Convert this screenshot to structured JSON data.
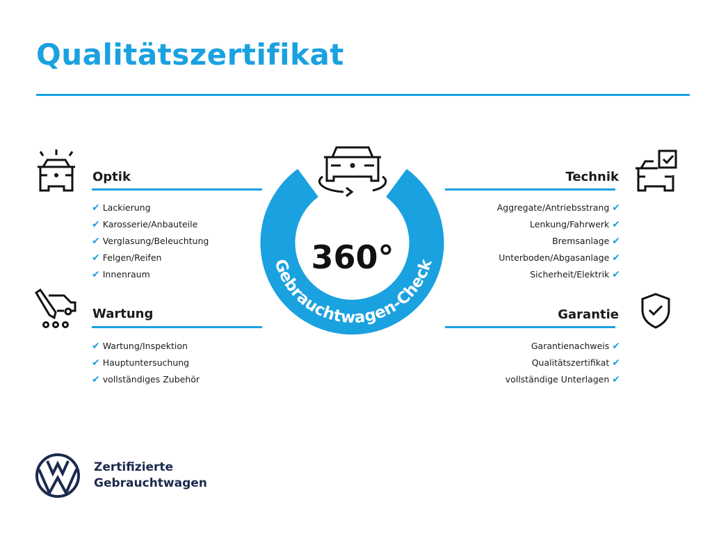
{
  "title": "Qualitätszertifikat",
  "center": {
    "number": "360°",
    "ring_text": "Gebrauchtwagen-Check"
  },
  "sections": {
    "optik": {
      "title": "Optik",
      "items": [
        "Lackierung",
        "Karosserie/Anbauteile",
        "Verglasung/Beleuchtung",
        "Felgen/Reifen",
        "Innenraum"
      ]
    },
    "wartung": {
      "title": "Wartung",
      "items": [
        "Wartung/Inspektion",
        "Hauptuntersuchung",
        "vollständiges Zubehör"
      ]
    },
    "technik": {
      "title": "Technik",
      "items": [
        "Aggregate/Antriebsstrang",
        "Lenkung/Fahrwerk",
        "Bremsanlage",
        "Unterboden/Abgasanlage",
        "Sicherheit/Elektrik"
      ]
    },
    "garantie": {
      "title": "Garantie",
      "items": [
        "Garantienachweis",
        "Qualitätszertifikat",
        "vollständige Unterlagen"
      ]
    }
  },
  "check_mark": "✔",
  "footer": {
    "line1": "Zertifizierte",
    "line2": "Gebrauchtwagen",
    "logo": "VW"
  },
  "colors": {
    "accent": "#1aa1e0",
    "brand_navy": "#1b2a4e"
  }
}
